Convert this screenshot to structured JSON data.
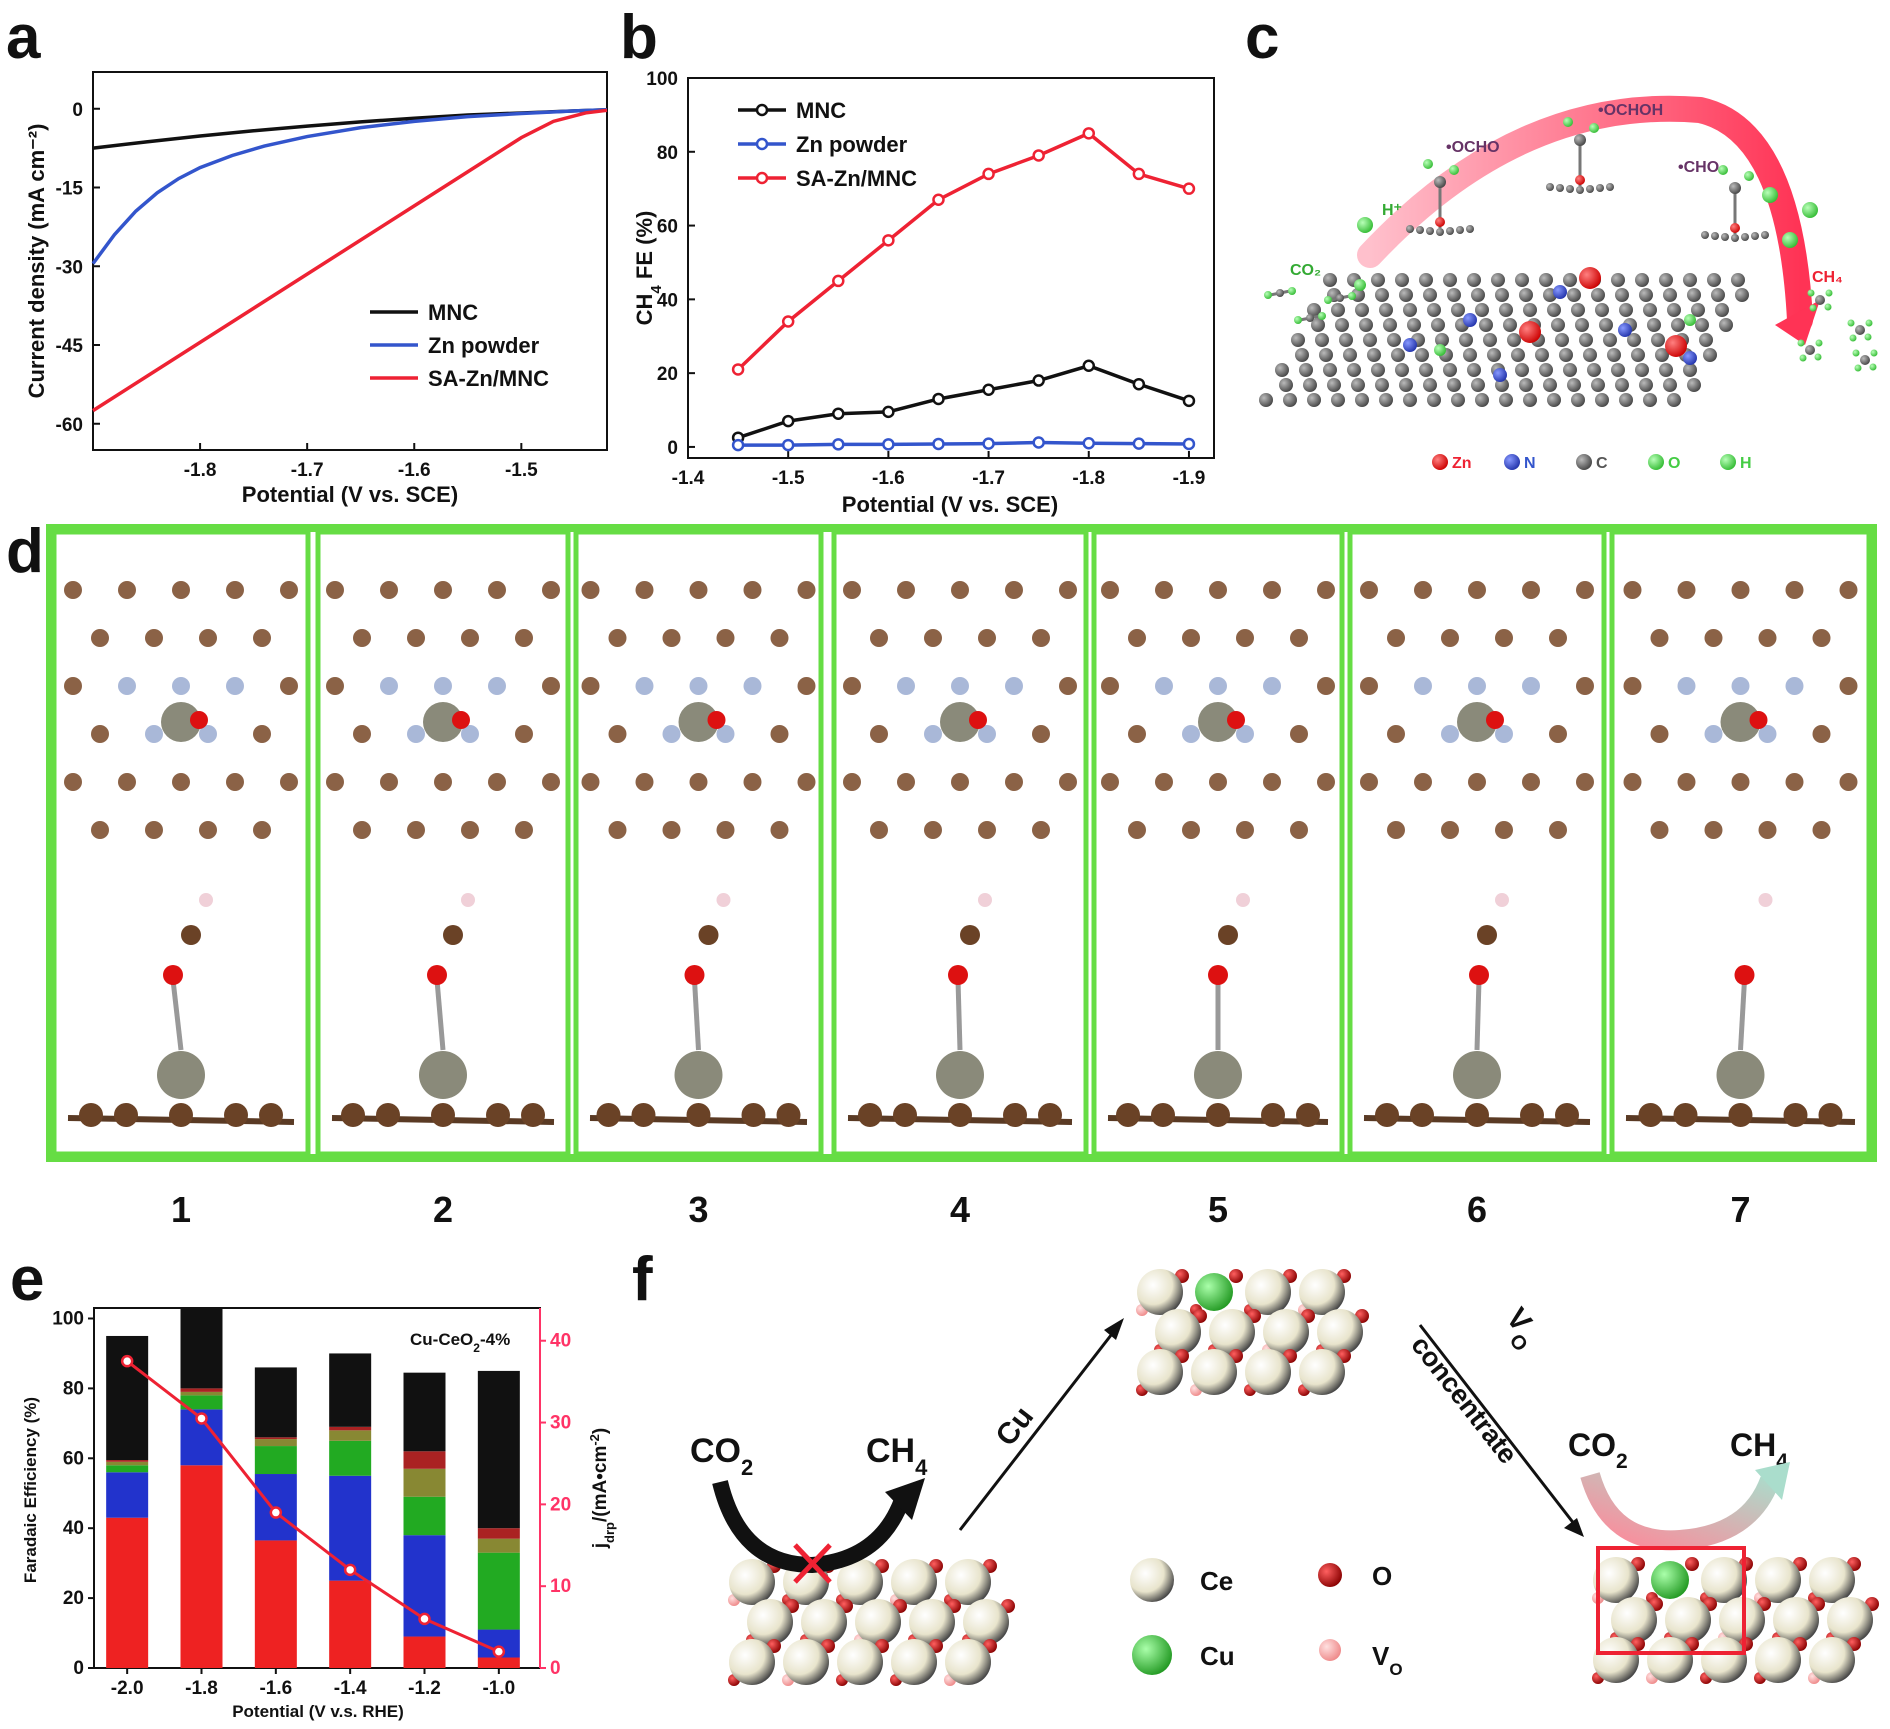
{
  "panels": {
    "a": "a",
    "b": "b",
    "c": "c",
    "d": "d",
    "e": "e",
    "f": "f"
  },
  "colors": {
    "mnc": "#111111",
    "zn": "#3355cc",
    "sa": "#ee2233",
    "frame": "#66dd44",
    "pink": "#ff3366",
    "ce": "#f2eedc",
    "o": "#dd1111",
    "cu": "#44cc44",
    "vo": "#ffaaaa",
    "c_atom": "#8b6246",
    "n_atom": "#a9b8d8",
    "zn_atom": "#8a8a7a",
    "h_atom": "#f0d0d8"
  },
  "chart_data": [
    {
      "id": "a",
      "type": "line",
      "xlabel": "Potential (V vs. SCE)",
      "ylabel": "Current density (mA cm⁻²)",
      "xlim": [
        -1.9,
        -1.42
      ],
      "ylim": [
        -65,
        7
      ],
      "xticks": [
        -1.8,
        -1.7,
        -1.6,
        -1.5
      ],
      "xtick_labels": [
        "-1.8",
        "-1.7",
        "-1.6",
        "-1.5"
      ],
      "yticks": [
        0,
        -15,
        -30,
        -45,
        -60
      ],
      "ytick_labels": [
        "0",
        "-15",
        "-30",
        "-45",
        "-60"
      ],
      "legend": "bottom-right",
      "series": [
        {
          "name": "MNC",
          "color": "#111111",
          "x": [
            -1.9,
            -1.85,
            -1.8,
            -1.75,
            -1.7,
            -1.65,
            -1.6,
            -1.55,
            -1.5,
            -1.45,
            -1.42
          ],
          "y": [
            -7.5,
            -6.3,
            -5.2,
            -4.2,
            -3.3,
            -2.5,
            -1.8,
            -1.2,
            -0.8,
            -0.4,
            -0.2
          ]
        },
        {
          "name": "Zn powder",
          "color": "#3355cc",
          "x": [
            -1.9,
            -1.88,
            -1.86,
            -1.84,
            -1.82,
            -1.8,
            -1.77,
            -1.74,
            -1.7,
            -1.65,
            -1.6,
            -1.55,
            -1.5,
            -1.45,
            -1.42
          ],
          "y": [
            -29.5,
            -24,
            -19.5,
            -16,
            -13.3,
            -11.2,
            -8.9,
            -7.1,
            -5.3,
            -3.6,
            -2.4,
            -1.5,
            -0.9,
            -0.4,
            -0.2
          ]
        },
        {
          "name": "SA-Zn/MNC",
          "color": "#ee2233",
          "x": [
            -1.9,
            -1.85,
            -1.8,
            -1.75,
            -1.7,
            -1.65,
            -1.6,
            -1.55,
            -1.5,
            -1.47,
            -1.44,
            -1.42
          ],
          "y": [
            -57.5,
            -51,
            -44.5,
            -38,
            -31.5,
            -25,
            -18.5,
            -12,
            -5.5,
            -2.4,
            -0.8,
            -0.3
          ]
        }
      ]
    },
    {
      "id": "b",
      "type": "line",
      "xlabel": "Potential (V vs. SCE)",
      "ylabel": "CH4 FE (%)",
      "xlim": [
        -1.4,
        -1.925
      ],
      "ylim": [
        -3,
        100
      ],
      "xticks": [
        -1.4,
        -1.5,
        -1.6,
        -1.7,
        -1.8,
        -1.9
      ],
      "xtick_labels": [
        "-1.4",
        "-1.5",
        "-1.6",
        "-1.7",
        "-1.8",
        "-1.9"
      ],
      "yticks": [
        0,
        20,
        40,
        60,
        80,
        100
      ],
      "ytick_labels": [
        "0",
        "20",
        "40",
        "60",
        "80",
        "100"
      ],
      "legend": "top-left",
      "series": [
        {
          "name": "MNC",
          "color": "#111111",
          "x": [
            -1.45,
            -1.5,
            -1.55,
            -1.6,
            -1.65,
            -1.7,
            -1.75,
            -1.8,
            -1.85,
            -1.9
          ],
          "y": [
            2.5,
            7,
            9,
            9.5,
            13,
            15.5,
            18,
            22,
            17,
            12.5
          ]
        },
        {
          "name": "Zn powder",
          "color": "#3355cc",
          "x": [
            -1.45,
            -1.5,
            -1.55,
            -1.6,
            -1.65,
            -1.7,
            -1.75,
            -1.8,
            -1.85,
            -1.9
          ],
          "y": [
            0.5,
            0.5,
            0.7,
            0.7,
            0.8,
            0.9,
            1.2,
            1.0,
            0.9,
            0.8
          ]
        },
        {
          "name": "SA-Zn/MNC",
          "color": "#ee2233",
          "x": [
            -1.45,
            -1.5,
            -1.55,
            -1.6,
            -1.65,
            -1.7,
            -1.75,
            -1.8,
            -1.85,
            -1.9
          ],
          "y": [
            21,
            34,
            45,
            56,
            67,
            74,
            79,
            85,
            74,
            70
          ]
        }
      ]
    },
    {
      "id": "e",
      "type": "bar",
      "title": "Cu-CeO₂-4%",
      "xlabel": "Potential (V v.s. RHE)",
      "ylabel": "Faradaic Efficiency (%)",
      "y2label": "j_drp/(mA•cm⁻²)",
      "categories": [
        "-2.0",
        "-1.8",
        "-1.6",
        "-1.4",
        "-1.2",
        "-1.0"
      ],
      "ylim": [
        0,
        103
      ],
      "yticks": [
        0,
        20,
        40,
        60,
        80,
        100
      ],
      "ytick_labels": [
        "0",
        "20",
        "40",
        "60",
        "80",
        "100"
      ],
      "y2lim": [
        0,
        44
      ],
      "y2ticks": [
        0,
        10,
        20,
        30,
        40
      ],
      "y2tick_labels": [
        "0",
        "10",
        "20",
        "30",
        "40"
      ],
      "stack_colors": [
        "#ee2222",
        "#2233cc",
        "#22aa22",
        "#888833",
        "#aa2222",
        "#111111"
      ],
      "stacks": [
        [
          43,
          13,
          2,
          1,
          0.5,
          35.5
        ],
        [
          58,
          16,
          4,
          1,
          1,
          23
        ],
        [
          36.5,
          19,
          8,
          2,
          0.5,
          20
        ],
        [
          25,
          30,
          10,
          3,
          1,
          21
        ],
        [
          9,
          29,
          11,
          8,
          5,
          22.5
        ],
        [
          3,
          8,
          22,
          4,
          3,
          45
        ]
      ],
      "line": {
        "color": "#ee2233",
        "values": [
          37.5,
          30.5,
          19,
          12,
          6,
          2
        ]
      }
    }
  ],
  "panel_c": {
    "labels": [
      "•OCHO",
      "•OCHOH",
      "•CHO",
      "H⁺",
      "CO₂",
      "CH₄"
    ],
    "legend": [
      "Zn",
      "N",
      "C",
      "O",
      "H"
    ]
  },
  "panel_d": {
    "steps": [
      "1",
      "2",
      "3",
      "4",
      "5",
      "6",
      "7"
    ]
  },
  "panel_f": {
    "co2": "CO₂",
    "ch4": "CH₄",
    "cu": "Cu",
    "vo": "VO",
    "concentrate": "concentrate",
    "legend": [
      "Ce",
      "O",
      "Cu",
      "VO"
    ]
  }
}
